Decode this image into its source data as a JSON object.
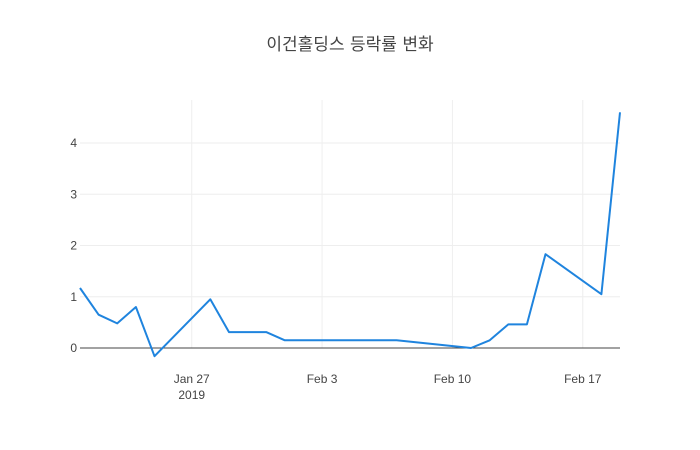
{
  "chart_data": {
    "type": "line",
    "title": "이건홀딩스 등락률 변화",
    "xlabel": "",
    "ylabel": "",
    "x_range": [
      "2019-01-21",
      "2019-02-19"
    ],
    "ylim": [
      -0.2,
      4.6
    ],
    "x_ticks": [
      {
        "date": "2019-01-27",
        "label": "Jan 27",
        "sublabel": "2019"
      },
      {
        "date": "2019-02-03",
        "label": "Feb 3",
        "sublabel": ""
      },
      {
        "date": "2019-02-10",
        "label": "Feb 10",
        "sublabel": ""
      },
      {
        "date": "2019-02-17",
        "label": "Feb 17",
        "sublabel": ""
      }
    ],
    "y_ticks": [
      0,
      1,
      2,
      3,
      4
    ],
    "grid": true,
    "series": [
      {
        "color": "#1f84de",
        "x": [
          "2019-01-21",
          "2019-01-22",
          "2019-01-23",
          "2019-01-24",
          "2019-01-25",
          "2019-01-28",
          "2019-01-29",
          "2019-01-30",
          "2019-01-31",
          "2019-02-01",
          "2019-02-07",
          "2019-02-11",
          "2019-02-12",
          "2019-02-13",
          "2019-02-14",
          "2019-02-15",
          "2019-02-18",
          "2019-02-19"
        ],
        "y": [
          1.17,
          0.65,
          0.48,
          0.8,
          -0.16,
          0.95,
          0.31,
          0.31,
          0.31,
          0.15,
          0.15,
          0.0,
          0.15,
          0.46,
          0.46,
          1.83,
          1.05,
          4.6
        ]
      }
    ]
  }
}
